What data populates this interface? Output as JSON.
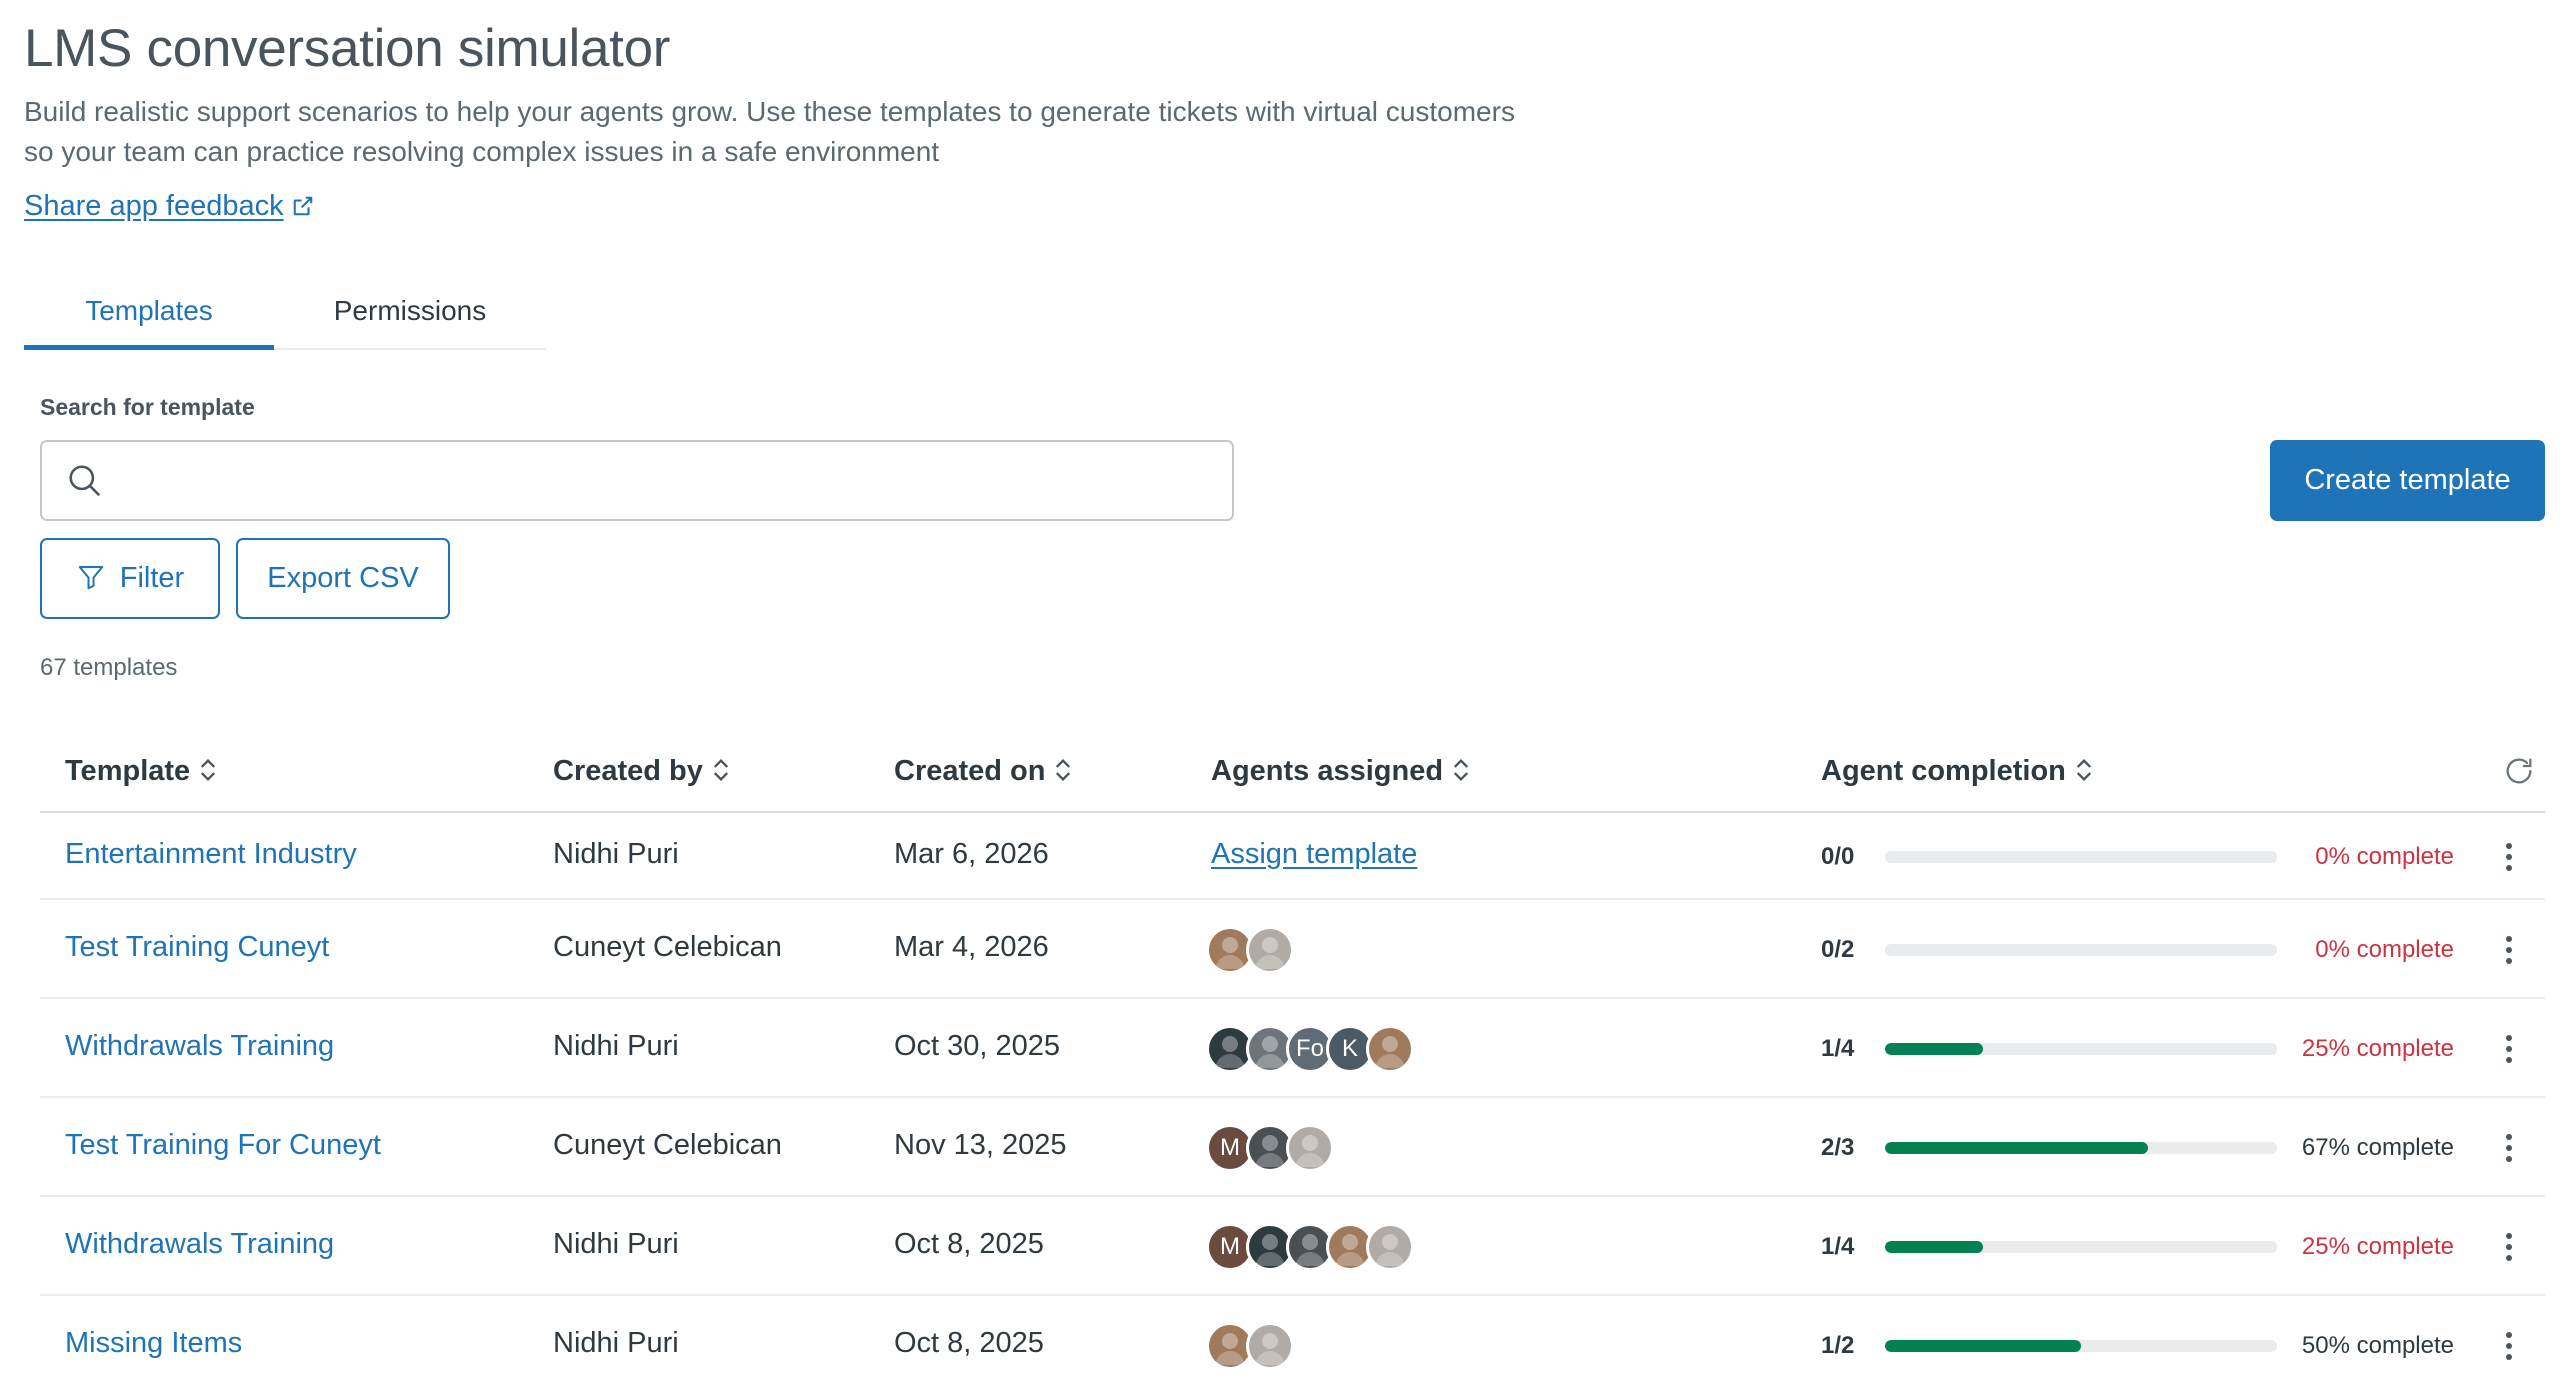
{
  "header": {
    "title": "LMS conversation simulator",
    "description": "Build realistic support scenarios to help your agents grow. Use these templates to generate tickets with virtual customers so your team can practice resolving complex issues in a safe environment",
    "feedback_link": "Share app feedback"
  },
  "tabs": [
    {
      "label": "Templates",
      "active": true
    },
    {
      "label": "Permissions",
      "active": false
    }
  ],
  "search": {
    "label": "Search for template",
    "value": "",
    "placeholder": ""
  },
  "actions": {
    "create": "Create template",
    "filter": "Filter",
    "export": "Export CSV"
  },
  "count_text": "67 templates",
  "table": {
    "columns": [
      "Template",
      "Created by",
      "Created on",
      "Agents assigned",
      "Agent completion"
    ],
    "rows": [
      {
        "name": "Entertainment Industry",
        "created_by": "Nidhi Puri",
        "created_on": "Mar 6, 2026",
        "assign_link": "Assign template",
        "avatars": [],
        "fraction": "0/0",
        "progress": 0,
        "pct": "0% complete",
        "pct_color": "red"
      },
      {
        "name": "Test Training Cuneyt",
        "created_by": "Cuneyt Celebican",
        "created_on": "Mar 4, 2026",
        "avatars": [
          {
            "type": "photo",
            "color": "#a07a5c"
          },
          {
            "type": "photo",
            "color": "#b0aba6"
          }
        ],
        "fraction": "0/2",
        "progress": 0,
        "pct": "0% complete",
        "pct_color": "red"
      },
      {
        "name": "Withdrawals Training",
        "created_by": "Nidhi Puri",
        "created_on": "Oct 30, 2025",
        "avatars": [
          {
            "type": "photo",
            "color": "#2d3a40"
          },
          {
            "type": "photo",
            "color": "#6e7479"
          },
          {
            "type": "initials",
            "text": "Fo",
            "color": "#5f6b75"
          },
          {
            "type": "initials",
            "text": "K",
            "color": "#4c5a66"
          },
          {
            "type": "photo",
            "color": "#a07a5c"
          }
        ],
        "fraction": "1/4",
        "progress": 0.25,
        "pct": "25% complete",
        "pct_color": "red"
      },
      {
        "name": "Test Training For Cuneyt",
        "created_by": "Cuneyt Celebican",
        "created_on": "Nov 13, 2025",
        "avatars": [
          {
            "type": "initials",
            "text": "M",
            "color": "#6b4a3f"
          },
          {
            "type": "photo",
            "color": "#4a4f54"
          },
          {
            "type": "photo",
            "color": "#b0aba6"
          }
        ],
        "fraction": "2/3",
        "progress": 0.67,
        "pct": "67% complete",
        "pct_color": "dark"
      },
      {
        "name": "Withdrawals Training",
        "created_by": "Nidhi Puri",
        "created_on": "Oct 8, 2025",
        "avatars": [
          {
            "type": "initials",
            "text": "M",
            "color": "#6b4a3f"
          },
          {
            "type": "photo",
            "color": "#2d3a40"
          },
          {
            "type": "photo",
            "color": "#4a4f54"
          },
          {
            "type": "photo",
            "color": "#a07a5c"
          },
          {
            "type": "photo",
            "color": "#b0aba6"
          }
        ],
        "fraction": "1/4",
        "progress": 0.25,
        "pct": "25% complete",
        "pct_color": "red"
      },
      {
        "name": "Missing Items",
        "created_by": "Nidhi Puri",
        "created_on": "Oct 8, 2025",
        "avatars": [
          {
            "type": "photo",
            "color": "#a07a5c"
          },
          {
            "type": "photo",
            "color": "#b0aba6"
          }
        ],
        "fraction": "1/2",
        "progress": 0.5,
        "pct": "50% complete",
        "pct_color": "dark"
      }
    ]
  },
  "colors": {
    "accent": "#1f73b7",
    "progress_fill": "#038153",
    "danger_text": "#cc3340"
  },
  "icons": [
    "external-link-icon",
    "search-icon",
    "filter-icon",
    "sort-icon",
    "refresh-icon",
    "kebab-menu-icon"
  ]
}
